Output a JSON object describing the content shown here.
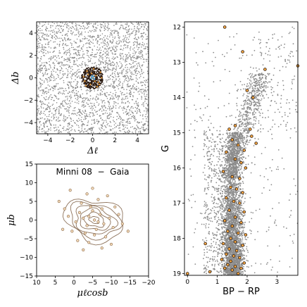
{
  "chart_data": [
    {
      "id": "spatial",
      "type": "scatter",
      "title": "",
      "xlabel": "Δℓ",
      "ylabel": "Δb",
      "xlim": [
        -5,
        5
      ],
      "ylim": [
        -5,
        5
      ],
      "xticks": [
        -4,
        -2,
        0,
        2,
        4
      ],
      "yticks": [
        -4,
        -2,
        0,
        2,
        4
      ],
      "series": [
        {
          "role": "field",
          "color": "#8c8c8c",
          "points": [
            [
              -4.5,
              4.6
            ],
            [
              -3.2,
              4.1
            ],
            [
              -1.1,
              4.4
            ],
            [
              0.7,
              4.2
            ],
            [
              2.5,
              4.5
            ],
            [
              4.1,
              4.3
            ],
            [
              -4.2,
              3.0
            ],
            [
              -2.6,
              2.7
            ],
            [
              -0.5,
              3.1
            ],
            [
              1.3,
              2.8
            ],
            [
              3.3,
              3.2
            ],
            [
              4.6,
              2.6
            ],
            [
              -4.7,
              1.5
            ],
            [
              -3.1,
              1.3
            ],
            [
              -1.6,
              1.8
            ],
            [
              1.8,
              1.4
            ],
            [
              3.0,
              1.7
            ],
            [
              4.4,
              1.1
            ],
            [
              -4.4,
              0.2
            ],
            [
              -2.9,
              -0.1
            ],
            [
              2.3,
              0.3
            ],
            [
              3.9,
              -0.3
            ],
            [
              -4.1,
              -1.4
            ],
            [
              -2.4,
              -1.7
            ],
            [
              -0.8,
              -2.2
            ],
            [
              1.6,
              -1.8
            ],
            [
              3.4,
              -1.3
            ],
            [
              4.7,
              -1.9
            ],
            [
              -4.6,
              -3.0
            ],
            [
              -3.0,
              -2.8
            ],
            [
              -1.2,
              -3.3
            ],
            [
              0.6,
              -2.9
            ],
            [
              2.2,
              -3.1
            ],
            [
              4.0,
              -2.7
            ],
            [
              -4.3,
              -4.4
            ],
            [
              -2.2,
              -4.1
            ],
            [
              -0.3,
              -4.6
            ],
            [
              1.5,
              -4.3
            ],
            [
              3.1,
              -4.5
            ],
            [
              4.5,
              -4.2
            ]
          ]
        },
        {
          "role": "members",
          "color": "#f5a742",
          "points": [
            [
              0.0,
              0.0
            ],
            [
              0.3,
              0.2
            ],
            [
              -0.4,
              0.3
            ],
            [
              0.5,
              -0.4
            ],
            [
              -0.2,
              -0.6
            ],
            [
              0.7,
              0.5
            ],
            [
              -0.7,
              -0.3
            ],
            [
              0.1,
              0.8
            ],
            [
              -0.5,
              0.6
            ],
            [
              0.4,
              -0.8
            ],
            [
              0.8,
              0.0
            ],
            [
              -0.8,
              0.1
            ],
            [
              0.2,
              -0.3
            ],
            [
              -0.1,
              0.4
            ],
            [
              0.6,
              -0.6
            ],
            [
              -0.6,
              -0.7
            ]
          ]
        },
        {
          "role": "core",
          "color": "#5aa7d9",
          "points": [
            [
              0.05,
              0.1
            ],
            [
              -0.1,
              -0.05
            ],
            [
              0.15,
              -0.1
            ],
            [
              -0.05,
              0.15
            ]
          ]
        }
      ],
      "members_radius": 1.0
    },
    {
      "id": "proper_motion",
      "type": "scatter",
      "title": "Minni 08  −  Gaia",
      "xlabel": "μℓcosb",
      "ylabel": "μb",
      "xlim": [
        10,
        -20
      ],
      "ylim": [
        -15,
        15
      ],
      "xticks": [
        10,
        5,
        0,
        -5,
        -10,
        -15,
        -20
      ],
      "yticks": [
        -15,
        -10,
        -5,
        0,
        5,
        10,
        15
      ],
      "points": [
        [
          -5.5,
          0.0
        ],
        [
          -4.0,
          1.0
        ],
        [
          -6.5,
          -0.5
        ],
        [
          -3.5,
          -1.5
        ],
        [
          -7.0,
          1.5
        ],
        [
          -5.0,
          2.5
        ],
        [
          -2.5,
          0.5
        ],
        [
          -8.0,
          -1.0
        ],
        [
          -6.0,
          -2.5
        ],
        [
          -4.5,
          3.5
        ],
        [
          -1.5,
          2.0
        ],
        [
          -9.5,
          0.5
        ],
        [
          -3.0,
          -3.5
        ],
        [
          -7.5,
          3.0
        ],
        [
          -0.5,
          -0.5
        ],
        [
          -10.5,
          -2.0
        ],
        [
          -5.5,
          -4.0
        ],
        [
          -2.0,
          4.5
        ],
        [
          1.5,
          1.0
        ],
        [
          -12.0,
          1.5
        ],
        [
          -6.5,
          5.5
        ],
        [
          -8.5,
          -4.5
        ],
        [
          -4.0,
          -6.0
        ],
        [
          0.5,
          -3.0
        ],
        [
          -11.0,
          3.5
        ],
        [
          2.5,
          3.0
        ],
        [
          -13.0,
          -1.0
        ],
        [
          -3.5,
          7.0
        ],
        [
          1.0,
          8.0
        ],
        [
          -14.5,
          -3.0
        ],
        [
          -7.5,
          -7.5
        ],
        [
          -1.0,
          -5.5
        ],
        [
          3.0,
          -2.5
        ],
        [
          -9.0,
          6.5
        ],
        [
          -5.0,
          8.5
        ],
        [
          -10.0,
          -6.5
        ],
        [
          -2.5,
          -8.0
        ],
        [
          4.0,
          5.0
        ]
      ],
      "contours_center": [
        -5.5,
        0.0
      ],
      "contour_levels": 6
    },
    {
      "id": "cmd",
      "type": "scatter",
      "title": "",
      "xlabel": "BP − RP",
      "ylabel": "G",
      "xlim": [
        -0.1,
        3.7
      ],
      "ylim": [
        19.05,
        11.85
      ],
      "xticks": [
        0,
        1,
        2,
        3
      ],
      "yticks": [
        12,
        13,
        14,
        15,
        16,
        17,
        18,
        19
      ],
      "members": [
        [
          1.25,
          12.0
        ],
        [
          1.85,
          12.7
        ],
        [
          3.7,
          13.1
        ],
        [
          2.6,
          13.2
        ],
        [
          2.0,
          13.8
        ],
        [
          2.2,
          14.0
        ],
        [
          1.6,
          14.8
        ],
        [
          1.4,
          14.9
        ],
        [
          2.1,
          14.9
        ],
        [
          2.15,
          15.1
        ],
        [
          1.5,
          15.2
        ],
        [
          1.7,
          15.35
        ],
        [
          2.3,
          15.3
        ],
        [
          1.9,
          15.5
        ],
        [
          1.3,
          15.55
        ],
        [
          1.6,
          15.75
        ],
        [
          1.8,
          15.85
        ],
        [
          1.95,
          16.0
        ],
        [
          1.2,
          16.1
        ],
        [
          1.5,
          16.25
        ],
        [
          1.75,
          16.3
        ],
        [
          1.45,
          16.55
        ],
        [
          1.65,
          16.6
        ],
        [
          1.85,
          16.7
        ],
        [
          1.3,
          16.85
        ],
        [
          1.55,
          16.95
        ],
        [
          1.75,
          17.0
        ],
        [
          1.4,
          17.2
        ],
        [
          1.9,
          17.25
        ],
        [
          1.6,
          17.4
        ],
        [
          1.25,
          17.5
        ],
        [
          1.8,
          17.55
        ],
        [
          1.5,
          17.65
        ],
        [
          1.35,
          17.8
        ],
        [
          1.7,
          17.85
        ],
        [
          1.95,
          17.9
        ],
        [
          1.45,
          18.0
        ],
        [
          1.6,
          18.1
        ],
        [
          1.2,
          18.15
        ],
        [
          1.85,
          18.2
        ],
        [
          1.4,
          18.3
        ],
        [
          1.65,
          18.35
        ],
        [
          1.3,
          18.45
        ],
        [
          1.55,
          18.5
        ],
        [
          1.75,
          18.55
        ],
        [
          1.15,
          18.6
        ],
        [
          1.45,
          18.65
        ],
        [
          1.9,
          18.7
        ],
        [
          1.35,
          18.75
        ],
        [
          1.6,
          18.8
        ],
        [
          1.25,
          18.85
        ],
        [
          1.8,
          18.85
        ],
        [
          1.5,
          18.9
        ],
        [
          0.75,
          18.95
        ],
        [
          1.7,
          19.0
        ],
        [
          0.0,
          19.0
        ],
        [
          0.6,
          18.15
        ]
      ]
    }
  ]
}
